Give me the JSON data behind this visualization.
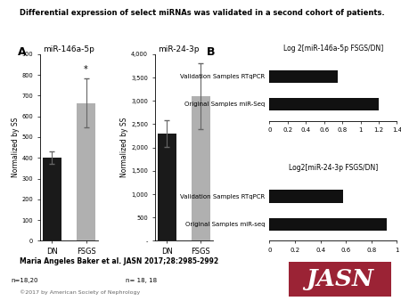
{
  "title": "Differential expression of select miRNAs was validated in a second cohort of patients.",
  "panel_A_label": "A",
  "bar1_title": "miR-146a-5p",
  "bar1_ylabel": "Normalized by SS",
  "bar1_categories": [
    "DN",
    "FSGS"
  ],
  "bar1_values": [
    400,
    665
  ],
  "bar1_errors": [
    30,
    120
  ],
  "bar1_colors": [
    "#1a1a1a",
    "#b0b0b0"
  ],
  "bar1_ylim": [
    0,
    900
  ],
  "bar1_yticks": [
    0,
    100,
    200,
    300,
    400,
    500,
    600,
    700,
    800,
    900
  ],
  "bar1_n_label": "n=18,20",
  "bar1_star": "*",
  "bar2_title": "miR-24-3p",
  "bar2_ylabel": "Normalized by SS",
  "bar2_categories": [
    "DN",
    "FSGS"
  ],
  "bar2_values": [
    2300,
    3100
  ],
  "bar2_errors": [
    280,
    700
  ],
  "bar2_colors": [
    "#1a1a1a",
    "#b0b0b0"
  ],
  "bar2_ylim": [
    0,
    4000
  ],
  "bar2_yticks": [
    0,
    500,
    1000,
    1500,
    2000,
    2500,
    3000,
    3500,
    4000
  ],
  "bar2_n_label": "n= 18, 18",
  "panel_B_label": "B",
  "hbar1_title": "Log 2[miR-146a-5p FSGS/DN]",
  "hbar1_labels": [
    "Validation Samples RTqPCR",
    "Original Samples miR-Seq"
  ],
  "hbar1_values": [
    0.75,
    1.2
  ],
  "hbar1_xlim": [
    0,
    1.4
  ],
  "hbar1_xticks": [
    0,
    0.2,
    0.4,
    0.6,
    0.8,
    1.0,
    1.2,
    1.4
  ],
  "hbar1_xtick_labels": [
    "0",
    "0.2",
    "0.4",
    "0.6",
    "0.8",
    "1",
    "1.2",
    "1.4"
  ],
  "hbar2_title": "Log2[miR-24-3p FSGS/DN]",
  "hbar2_labels": [
    "Validation Samples RTqPCR",
    "Original Samples miR-seq"
  ],
  "hbar2_values": [
    0.58,
    0.92
  ],
  "hbar2_xlim": [
    0,
    1.0
  ],
  "hbar2_xticks": [
    0,
    0.2,
    0.4,
    0.6,
    0.8,
    1.0
  ],
  "hbar2_xtick_labels": [
    "0",
    "0.2",
    "0.4",
    "0.6",
    "0.8",
    "1"
  ],
  "hbar_color": "#111111",
  "footer_text": "Maria Angeles Baker et al. JASN 2017;28:2985-2992",
  "copyright_text": "©2017 by American Society of Nephrology",
  "jasn_bg_color": "#9b2335",
  "jasn_text": "JASN",
  "bg_color": "#ffffff"
}
